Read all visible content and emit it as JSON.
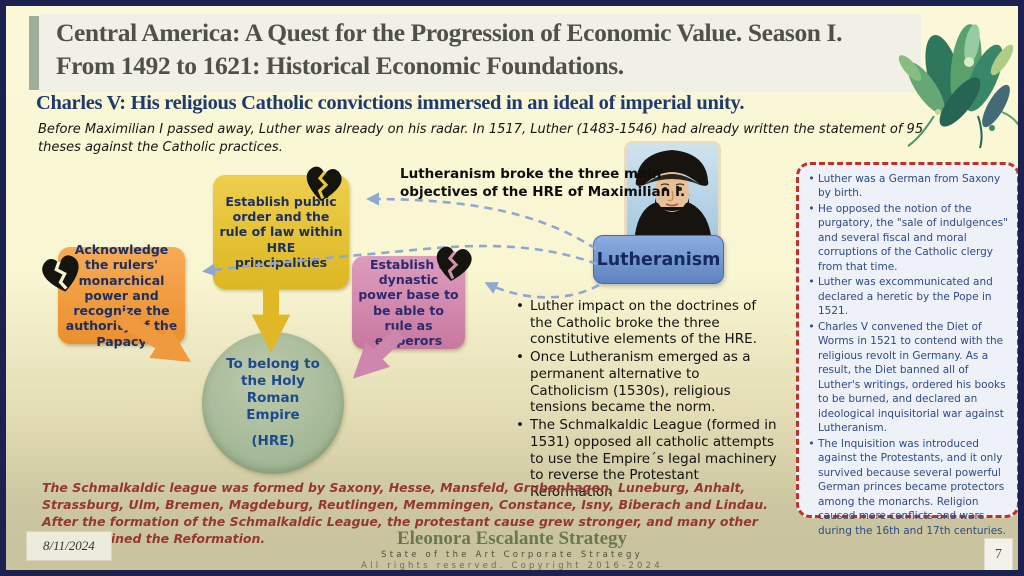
{
  "title": {
    "line1": "Central America:  A Quest for the Progression of Economic Value.  Season I.",
    "line2": "From 1492 to 1621: Historical Economic Foundations."
  },
  "subtitle": "Charles V: His religious Catholic convictions immersed in an ideal of imperial unity.",
  "intro": "Before Maximilian I passed away, Luther was already on his radar. In 1517, Luther (1483-1546) had already written the statement of 95 theses against the Catholic practices.",
  "diagram": {
    "caption": "Lutheranism broke the three main objectives of the HRE of Maximilian I.",
    "box_papacy": "Acknowledge the rulers' monarchical power and recognize the authority of the Papacy",
    "box_order": "Establish public order and the rule of law within HRE principalities",
    "box_dynastic": "Establish a dynastic power base to be able to rule as emperors",
    "circle_line1": "To belong to the Holy Roman Empire",
    "circle_line2": "(HRE)",
    "lutheranism_label": "Lutheranism"
  },
  "middle_bullets": [
    "Luther impact on the doctrines of the Catholic broke the three constitutive elements of the HRE.",
    "Once Lutheranism emerged as a permanent alternative to Catholicism (1530s), religious tensions became the norm.",
    "The Schmalkaldic League (formed in 1531) opposed all catholic attempts to use the Empire´s legal machinery to reverse the Protestant Reformation"
  ],
  "side_panel_bullets": [
    "Luther was a German from Saxony by birth.",
    "He opposed the notion of the purgatory, the \"sale of indulgences\" and several fiscal and moral corruptions of the Catholic clergy from that time.",
    "Luther was excommunicated and declared a heretic by the Pope in 1521.",
    "Charles V convened the Diet of Worms in 1521 to contend with the religious revolt in Germany. As a result, the Diet banned all of Luther's writings, ordered his books to be burned, and declared an ideological inquisitorial war against Lutheranism.",
    "The Inquisition was introduced against the Protestants, and it only survived because several powerful German princes became protectors among the monarchs. Religion caused more conflicts and wars during the 16th and 17th centuries."
  ],
  "bottom_note": "The Schmalkaldic league was formed by Saxony, Hesse, Mansfeld, Grubenhagen, Luneburg, Anhalt, Strassburg, Ulm, Bremen, Magdeburg, Reutlingen, Memmingen, Constance, Isny, Biberach and Lindau. After the formation of the Schmalkaldic League, the protestant cause grew stronger, and many other princes joined the Reformation.",
  "footer": {
    "brand": "Eleonora Escalante Strategy",
    "tagline": "State of the Art Corporate Strategy",
    "copyright": "All rights reserved. Copyright 2016-2024",
    "date": "8/11/2024",
    "page": "7"
  },
  "icons": {
    "broken_heart": "broken-heart-icon",
    "portrait": "martin-luther-portrait",
    "plant": "botanical-decoration"
  },
  "colors": {
    "background_top": "#fbf8d8",
    "background_bottom": "#c9c39d",
    "frame": "#1d2150",
    "title_text": "#50504a",
    "subtitle_text": "#1e3a6e",
    "box_orange": "#f09a40",
    "box_yellow": "#e7c335",
    "box_pink": "#d189b1",
    "circle_green": "#abbf9d",
    "box_blue": "#6f94d0",
    "dashed_arrow": "#8ea8d0",
    "panel_border": "#c13226",
    "panel_text": "#2c4b86",
    "bottom_note_text": "#963634",
    "brand_text": "#6b7752"
  }
}
